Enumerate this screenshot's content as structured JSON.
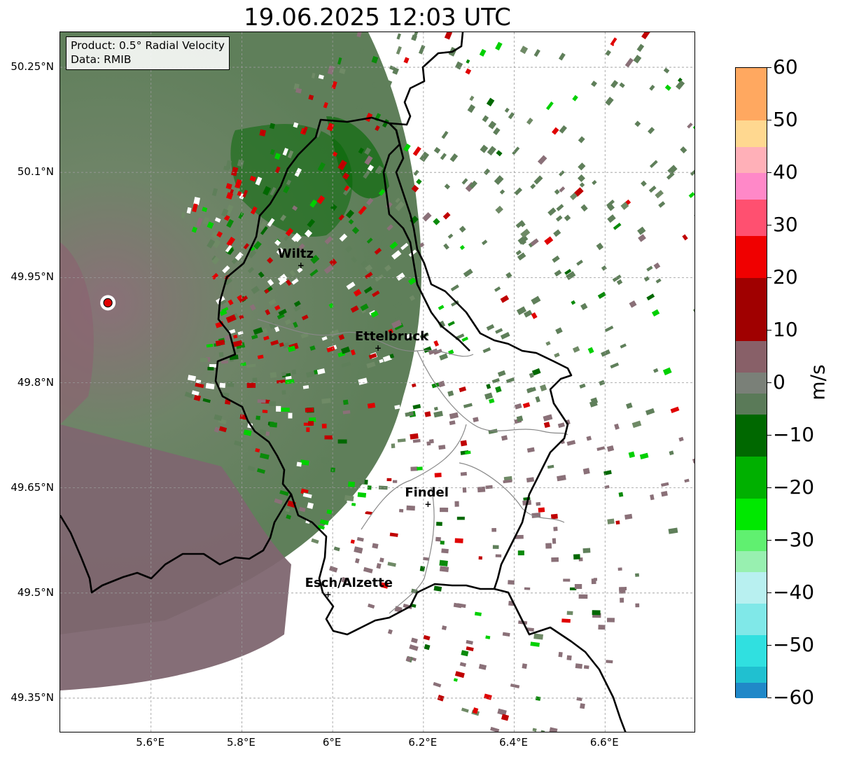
{
  "title": "19.06.2025 12:03 UTC",
  "info_box": {
    "product": "Product: 0.5° Radial Velocity",
    "data": "Data: RMIB"
  },
  "map": {
    "lon_range": [
      5.4,
      6.8
    ],
    "lat_range": [
      49.3,
      50.3
    ],
    "lat_ticks": [
      "50.25°N",
      "50.1°N",
      "49.95°N",
      "49.8°N",
      "49.65°N",
      "49.5°N",
      "49.35°N"
    ],
    "lon_ticks": [
      "5.6°E",
      "5.8°E",
      "6°E",
      "6.2°E",
      "6.4°E",
      "6.6°E"
    ],
    "lat_tick_values": [
      50.25,
      50.1,
      49.95,
      49.8,
      49.65,
      49.5,
      49.35
    ],
    "lon_tick_values": [
      5.6,
      5.8,
      6.0,
      6.2,
      6.4,
      6.6
    ],
    "radar_site": {
      "lon": 5.505,
      "lat": 49.914,
      "color": "#e00000"
    },
    "cities": [
      {
        "name": "Wiltz",
        "lon": 5.93,
        "lat": 49.966
      },
      {
        "name": "Ettelbruck",
        "lon": 6.1,
        "lat": 49.848
      },
      {
        "name": "Findel",
        "lon": 6.21,
        "lat": 49.626
      },
      {
        "name": "Esch/Alzette",
        "lon": 5.99,
        "lat": 49.497
      }
    ]
  },
  "colorbar": {
    "unit": "m/s",
    "min": -60,
    "max": 60,
    "ticks": [
      "60",
      "50",
      "40",
      "30",
      "20",
      "10",
      "0",
      "−10",
      "−20",
      "−30",
      "−40",
      "−50",
      "−60"
    ],
    "tick_values": [
      60,
      50,
      40,
      30,
      20,
      10,
      0,
      -10,
      -20,
      -30,
      -40,
      -50,
      -60
    ],
    "stops": [
      {
        "from": 50,
        "to": 60,
        "color": "#ffa860"
      },
      {
        "from": 45,
        "to": 50,
        "color": "#ffd890"
      },
      {
        "from": 40,
        "to": 45,
        "color": "#ffb0b8"
      },
      {
        "from": 35,
        "to": 40,
        "color": "#ff88c8"
      },
      {
        "from": 28,
        "to": 35,
        "color": "#ff5070"
      },
      {
        "from": 20,
        "to": 28,
        "color": "#f00000"
      },
      {
        "from": 8,
        "to": 20,
        "color": "#a00000"
      },
      {
        "from": 2,
        "to": 8,
        "color": "#886068"
      },
      {
        "from": -2,
        "to": 2,
        "color": "#7a8078"
      },
      {
        "from": -6,
        "to": -2,
        "color": "#5a7a58"
      },
      {
        "from": -14,
        "to": -6,
        "color": "#006800"
      },
      {
        "from": -22,
        "to": -14,
        "color": "#00b000"
      },
      {
        "from": -28,
        "to": -22,
        "color": "#00e800"
      },
      {
        "from": -32,
        "to": -28,
        "color": "#60f070"
      },
      {
        "from": -36,
        "to": -32,
        "color": "#98f0b0"
      },
      {
        "from": -42,
        "to": -36,
        "color": "#b8f0f0"
      },
      {
        "from": -48,
        "to": -42,
        "color": "#80e8e8"
      },
      {
        "from": -54,
        "to": -48,
        "color": "#30e0e0"
      },
      {
        "from": -57,
        "to": -54,
        "color": "#20c0d0"
      },
      {
        "from": -60,
        "to": -57,
        "color": "#2088c8"
      }
    ]
  }
}
